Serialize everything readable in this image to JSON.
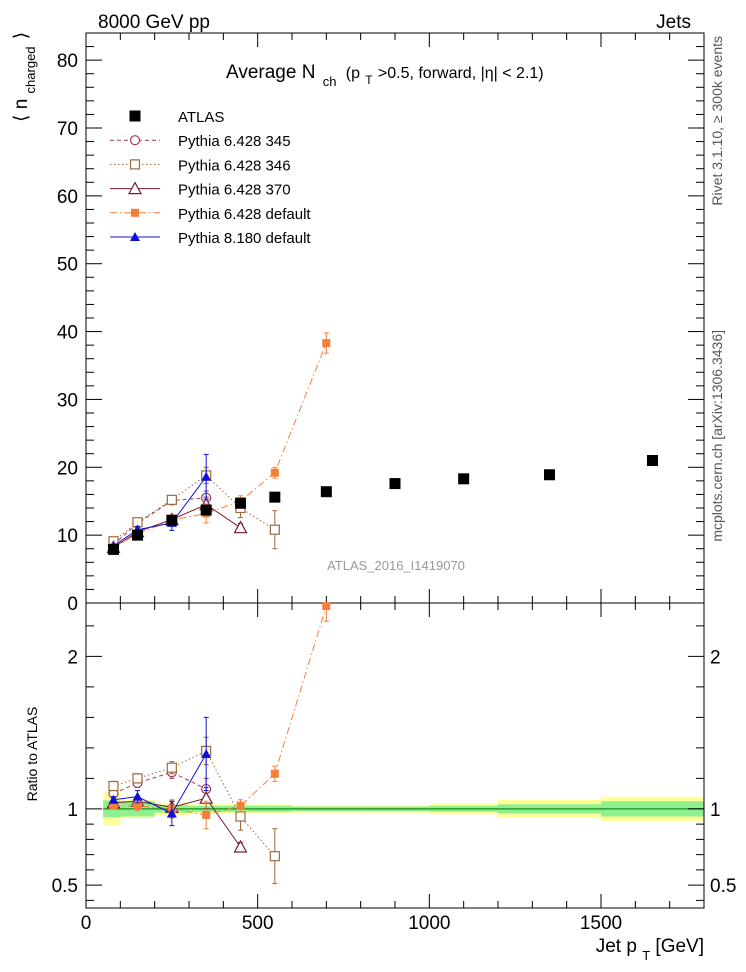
{
  "header": {
    "left": "8000 GeV pp",
    "right": "Jets"
  },
  "side_labels": {
    "rivet": "Rivet 3.1.10, ≥ 300k events",
    "mcplots": "mcplots.cern.ch [arXiv:1306.3436]"
  },
  "chart_data": {
    "type": "scatter",
    "title": {
      "text": "Average N",
      "sub": "ch",
      "rest": "(p",
      "rest_sub": "T",
      "tail": ">0.5, forward, |η| < 2.1)"
    },
    "analysis_id": "ATLAS_2016_I1419070",
    "xlabel": {
      "main": "Jet p",
      "sub": "T",
      "unit": " [GeV]"
    },
    "ylabel_main": {
      "left": "⟨ n",
      "sub": "charged",
      "right": "⟩"
    },
    "ylabel_ratio": "Ratio to ATLAS",
    "xlim": [
      0,
      1800
    ],
    "ylim_main": [
      0,
      84
    ],
    "ylim_ratio": [
      0.35,
      2.35
    ],
    "x_ticks": [
      0,
      500,
      1000,
      1500
    ],
    "x_tick_labels": [
      "0",
      "500",
      "1000",
      "1500"
    ],
    "y_ticks_main": [
      0,
      10,
      20,
      30,
      40,
      50,
      60,
      70,
      80
    ],
    "y_tick_labels_main": [
      "0",
      "10",
      "20",
      "30",
      "40",
      "50",
      "60",
      "70",
      "80"
    ],
    "y_ticks_ratio": [
      0.5,
      1,
      2
    ],
    "y_tick_labels_ratio": [
      "0.5",
      "1",
      "2"
    ],
    "ref_band": {
      "x_edges": [
        50,
        100,
        200,
        300,
        400,
        500,
        600,
        800,
        1000,
        1200,
        1500,
        1800
      ],
      "inner": [
        0.055,
        0.05,
        0.025,
        0.02,
        0.02,
        0.02,
        0.015,
        0.015,
        0.02,
        0.03,
        0.05
      ],
      "outer": [
        0.11,
        0.06,
        0.04,
        0.03,
        0.03,
        0.03,
        0.025,
        0.025,
        0.035,
        0.06,
        0.08
      ]
    },
    "series": [
      {
        "name": "ATLAS",
        "marker": "square-filled",
        "color": "#000000",
        "line": "none",
        "x": [
          80,
          150,
          250,
          350,
          450,
          550,
          700,
          900,
          1100,
          1350,
          1650
        ],
        "y": [
          7.9,
          10.0,
          12.2,
          13.7,
          14.7,
          15.6,
          16.4,
          17.6,
          18.3,
          18.9,
          21.0
        ],
        "yerr": [
          0,
          0,
          0,
          0,
          0,
          0,
          0,
          0,
          0,
          0,
          0
        ],
        "ratio": [
          1,
          1,
          1,
          1,
          1,
          1,
          1,
          1,
          1,
          1,
          1
        ],
        "ratio_err": [
          0,
          0,
          0,
          0,
          0,
          0,
          0,
          0,
          0,
          0,
          0
        ]
      },
      {
        "name": "Pythia 6.428 345",
        "marker": "circle-open",
        "color": "#a23b58",
        "line": "dashed",
        "x": [
          80,
          150,
          250,
          350
        ],
        "y": [
          8.6,
          11.7,
          15.1,
          15.5
        ],
        "yerr": [
          0.4,
          0.4,
          0.5,
          1.0
        ],
        "ratio": [
          1.1,
          1.17,
          1.24,
          1.13
        ],
        "ratio_err": [
          0.03,
          0.03,
          0.04,
          0.07
        ]
      },
      {
        "name": "Pythia 6.428 346",
        "marker": "square-open",
        "color": "#9c6a3c",
        "line": "dotted",
        "x": [
          80,
          150,
          250,
          350,
          450,
          550
        ],
        "y": [
          9.1,
          11.9,
          15.2,
          18.8,
          14.0,
          10.8
        ],
        "yerr": [
          0.4,
          0.4,
          0.5,
          1.2,
          1.4,
          2.8
        ],
        "ratio": [
          1.15,
          1.2,
          1.27,
          1.38,
          0.95,
          0.69
        ],
        "ratio_err": [
          0.03,
          0.03,
          0.04,
          0.09,
          0.09,
          0.18
        ]
      },
      {
        "name": "Pythia 6.428 370",
        "marker": "triangle-open",
        "color": "#7a1c2c",
        "line": "solid",
        "x": [
          80,
          150,
          250,
          350,
          450
        ],
        "y": [
          8.2,
          10.5,
          12.3,
          14.5,
          11.1
        ],
        "yerr": [
          0.3,
          0.4,
          0.6,
          1.1,
          0.6
        ],
        "ratio": [
          1.04,
          1.05,
          1.01,
          1.07,
          0.75
        ],
        "ratio_err": [
          0.02,
          0.03,
          0.04,
          0.07,
          0.03
        ]
      },
      {
        "name": "Pythia 6.428 default",
        "marker": "square-filled-small",
        "color": "#f2803a",
        "line": "dashdot",
        "x": [
          80,
          150,
          250,
          350,
          450,
          550,
          700
        ],
        "y": [
          8.1,
          10.2,
          12.2,
          13.2,
          15.0,
          19.2,
          38.3
        ],
        "yerr": [
          0.3,
          0.4,
          0.8,
          1.4,
          0.8,
          0.8,
          1.5
        ],
        "ratio": [
          1.02,
          1.02,
          1.0,
          0.96,
          1.02,
          1.23,
          2.33
        ],
        "ratio_err": [
          0.02,
          0.03,
          0.06,
          0.09,
          0.04,
          0.05,
          0.1
        ]
      },
      {
        "name": "Pythia 8.180 default",
        "marker": "triangle-filled",
        "color": "#1010dd",
        "line": "solid",
        "x": [
          80,
          150,
          250,
          350
        ],
        "y": [
          8.4,
          10.8,
          11.8,
          18.6
        ],
        "yerr": [
          0.3,
          0.5,
          1.1,
          3.3
        ],
        "ratio": [
          1.06,
          1.08,
          0.97,
          1.36
        ],
        "ratio_err": [
          0.02,
          0.04,
          0.08,
          0.24
        ]
      }
    ]
  }
}
